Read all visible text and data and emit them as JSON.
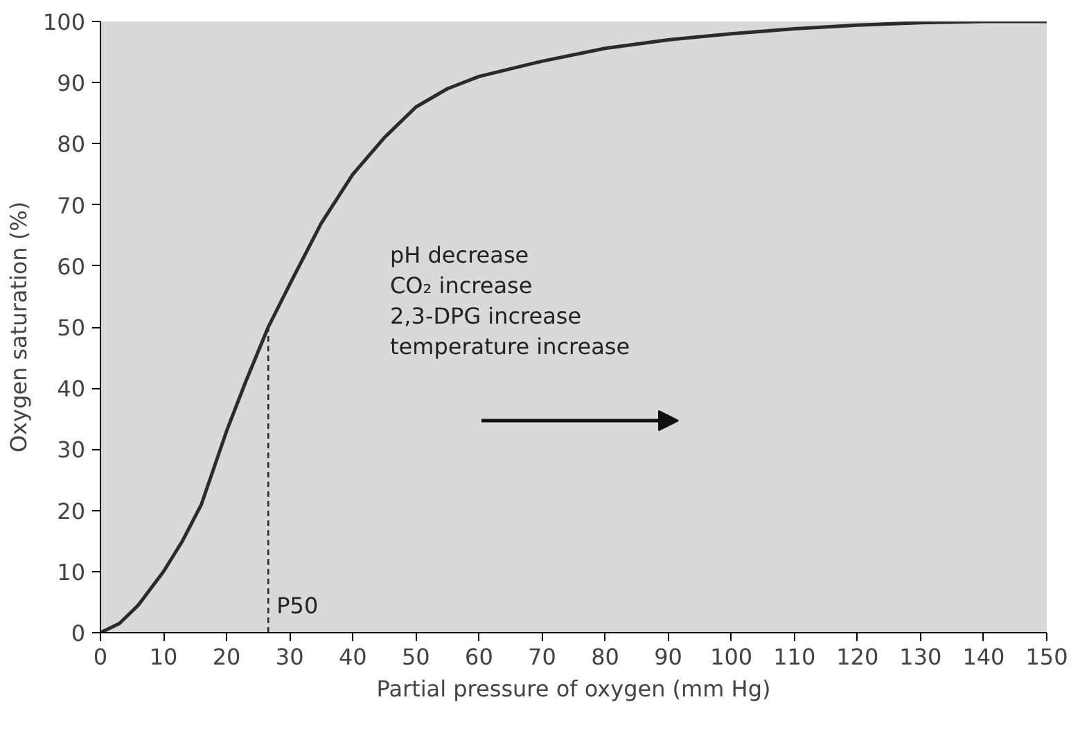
{
  "chart_data": {
    "type": "line",
    "xlabel": "Partial pressure of oxygen (mm Hg)",
    "ylabel": "Oxygen saturation (%)",
    "xlim": [
      0,
      150
    ],
    "ylim": [
      0,
      100
    ],
    "xticks": [
      0,
      10,
      20,
      30,
      40,
      50,
      60,
      70,
      80,
      90,
      100,
      110,
      120,
      130,
      140,
      150
    ],
    "yticks": [
      0,
      10,
      20,
      30,
      40,
      50,
      60,
      70,
      80,
      90,
      100
    ],
    "grid": false,
    "series": [
      {
        "color": "#2b2b2b",
        "line_style": "solid",
        "x": [
          0,
          3,
          6,
          10,
          13,
          16,
          20,
          23,
          26.6,
          30,
          35,
          40,
          45,
          50,
          55,
          60,
          70,
          80,
          90,
          100,
          110,
          120,
          130,
          140,
          150
        ],
        "values": [
          0,
          1.5,
          4.5,
          10,
          15,
          21,
          33,
          41,
          50,
          57,
          67,
          75,
          81,
          86,
          89,
          91,
          93.5,
          95.6,
          97,
          98,
          98.8,
          99.4,
          99.8,
          100,
          100
        ]
      },
      {
        "color": "#2b2b2b",
        "line_style": "dashed",
        "x": [
          26.6,
          26.6
        ],
        "values": [
          0,
          50
        ]
      }
    ],
    "annotations": [
      {
        "text": "P50",
        "x": 26.6,
        "y": 0
      },
      "pH decrease",
      "CO₂ increase",
      "2,3-DPG increase",
      "temperature increase"
    ]
  }
}
